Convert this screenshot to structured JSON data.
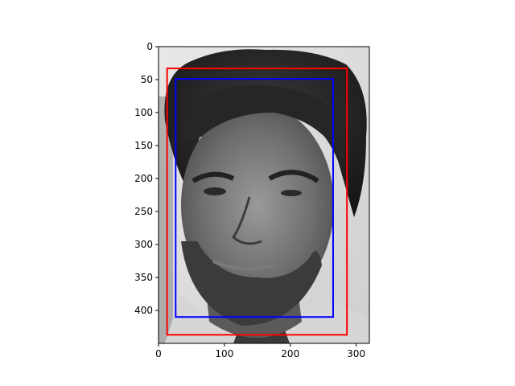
{
  "chart_data": {
    "type": "image",
    "title": "",
    "xlabel": "",
    "ylabel": "",
    "image": {
      "description_icon": "grayscale-face-photo",
      "width": 320,
      "height": 450
    },
    "xlim": [
      0,
      320
    ],
    "ylim": [
      450,
      0
    ],
    "x_ticks": [
      0,
      100,
      200,
      300
    ],
    "y_ticks": [
      0,
      50,
      100,
      150,
      200,
      250,
      300,
      350,
      400
    ],
    "boxes": [
      {
        "color": "#ff0000",
        "x0": 13,
        "y0": 33,
        "x1": 286,
        "y1": 437
      },
      {
        "color": "#0000ff",
        "x0": 26,
        "y0": 49,
        "x1": 265,
        "y1": 410
      }
    ]
  }
}
